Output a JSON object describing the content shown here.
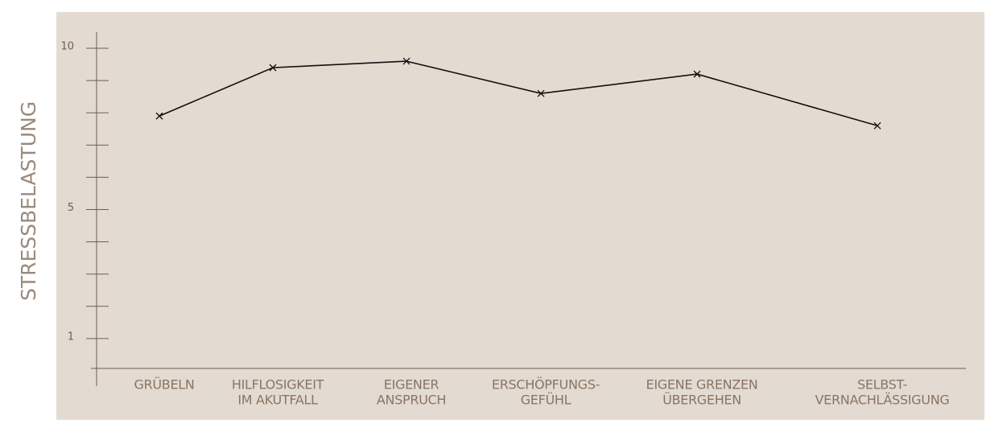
{
  "chart_data": {
    "type": "line",
    "y_label": "STRESSBELASTUNG",
    "categories": [
      [
        "GRÜBELN"
      ],
      [
        "HILFLOSIGKEIT",
        "IM AKUTFALL"
      ],
      [
        "EIGENER",
        "ANSPRUCH"
      ],
      [
        "ERSCHÖPFUNGS-",
        "GEFÜHL"
      ],
      [
        "EIGENE GRENZEN",
        "ÜBERGEHEN"
      ],
      [
        "SELBST-",
        "VERNACHLÄSSIGUNG"
      ]
    ],
    "values": [
      7.9,
      9.4,
      9.6,
      8.6,
      9.2,
      7.6
    ],
    "color": "#111111",
    "marker": "x",
    "ylim": [
      0,
      10.5
    ],
    "yticks": [
      1,
      5,
      10
    ],
    "minor_yticks": [
      2,
      3,
      4,
      6,
      7,
      8,
      9
    ]
  }
}
